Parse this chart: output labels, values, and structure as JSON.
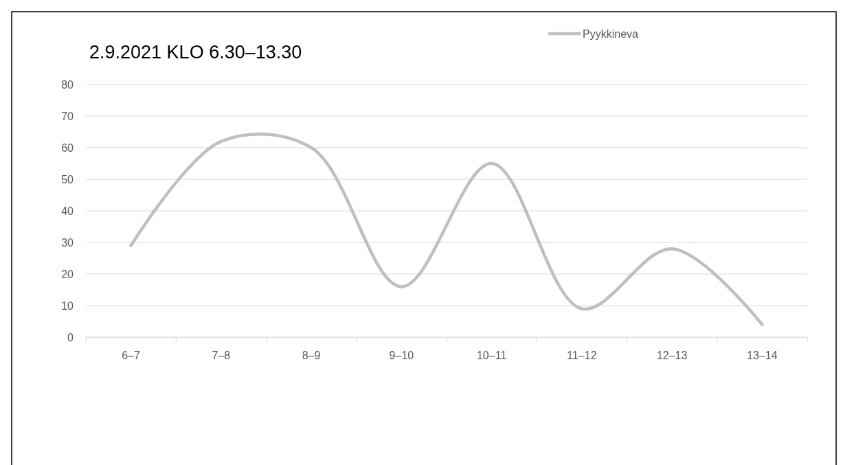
{
  "chart_data": {
    "type": "line",
    "title": "2.9.2021 KLO 6.30–13.30",
    "categories": [
      "6–7",
      "7–8",
      "8–9",
      "9–10",
      "10–11",
      "11–12",
      "12–13",
      "13–14"
    ],
    "series": [
      {
        "name": "Pyykkineva",
        "color": "#bfbfbf",
        "values": [
          29,
          62,
          60,
          16,
          55,
          9,
          28,
          4
        ]
      }
    ],
    "ylim": [
      0,
      80
    ],
    "yticks": [
      0,
      10,
      20,
      30,
      40,
      50,
      60,
      70,
      80
    ],
    "grid": "y",
    "legend": "top right",
    "marker": "none",
    "line_style": "solid"
  }
}
